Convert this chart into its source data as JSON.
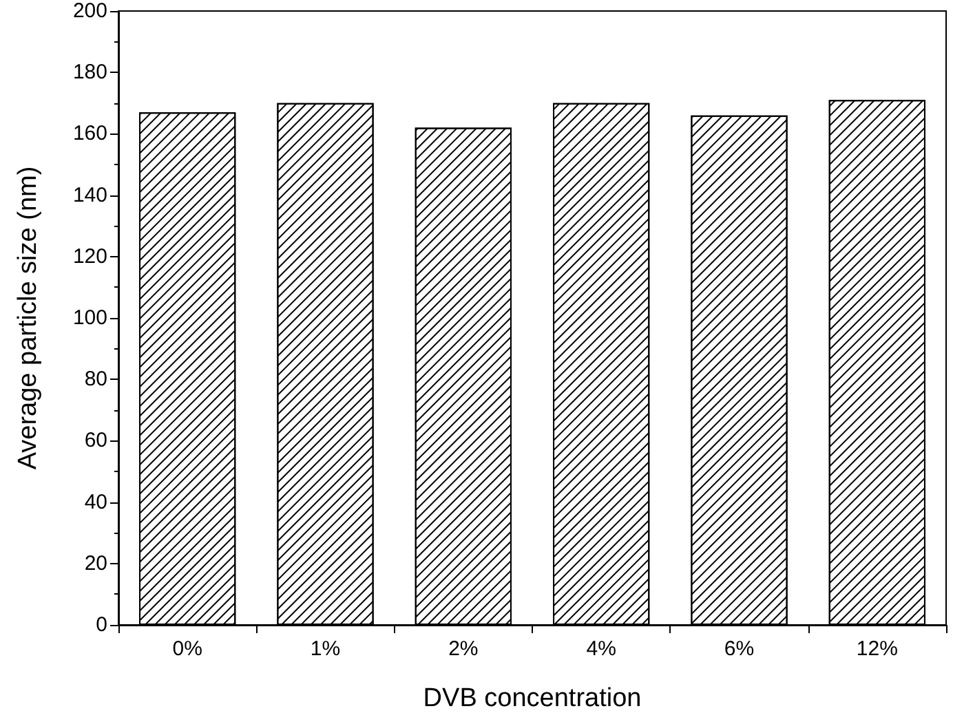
{
  "chart_data": {
    "type": "bar",
    "xlabel": "DVB concentration",
    "ylabel": "Average particle size (nm)",
    "categories": [
      "0%",
      "1%",
      "2%",
      "4%",
      "6%",
      "12%"
    ],
    "values": [
      167,
      170,
      162,
      170,
      166,
      171
    ],
    "color": "#ffffff",
    "ylim": [
      0,
      200
    ],
    "yticks": [
      0,
      20,
      40,
      60,
      80,
      100,
      120,
      140,
      160,
      180,
      200
    ],
    "grid": false
  }
}
